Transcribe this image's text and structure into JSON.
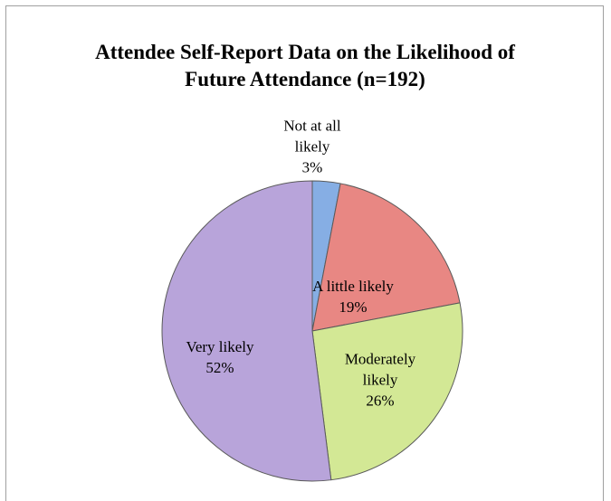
{
  "chart_data": {
    "type": "pie",
    "title": "Attendee Self-Report Data on the Likelihood of Future Attendance (n=192)",
    "categories": [
      "Not at all likely",
      "A little likely",
      "Moderately likely",
      "Very likely"
    ],
    "values": [
      3,
      19,
      26,
      52
    ],
    "value_labels": [
      "3%",
      "19%",
      "26%",
      "52%"
    ],
    "colors": [
      "#86aee4",
      "#e88783",
      "#d3e895",
      "#b8a4da"
    ]
  }
}
